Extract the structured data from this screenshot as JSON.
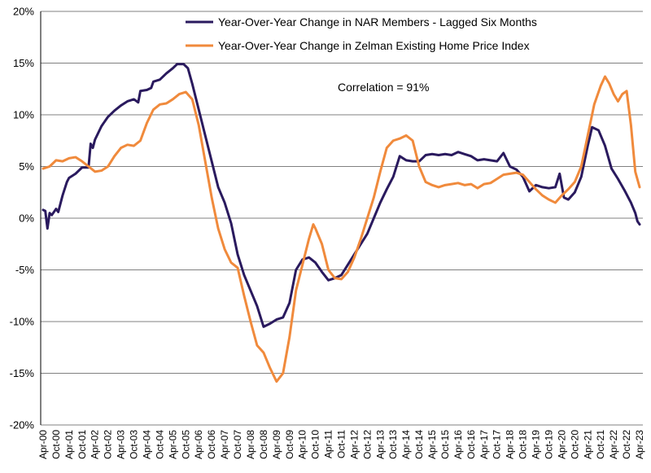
{
  "chart_data": {
    "type": "line",
    "title": "",
    "xlabel": "",
    "ylabel": "",
    "ylim": [
      -20,
      20
    ],
    "y_ticks": [
      20,
      15,
      10,
      5,
      0,
      -5,
      -10,
      -15,
      -20
    ],
    "y_tick_labels": [
      "20%",
      "15%",
      "10%",
      "5%",
      "0%",
      "-5%",
      "-10%",
      "-15%",
      "-20%"
    ],
    "x_range": [
      "2000-04",
      "2023-04"
    ],
    "x_tick_labels": [
      "Apr-00",
      "Oct-00",
      "Apr-01",
      "Oct-01",
      "Apr-02",
      "Oct-02",
      "Apr-03",
      "Oct-03",
      "Apr-04",
      "Oct-04",
      "Apr-05",
      "Oct-05",
      "Apr-06",
      "Oct-06",
      "Apr-07",
      "Oct-07",
      "Apr-08",
      "Oct-08",
      "Apr-09",
      "Oct-09",
      "Apr-10",
      "Oct-10",
      "Apr-11",
      "Oct-11",
      "Apr-12",
      "Oct-12",
      "Apr-13",
      "Oct-13",
      "Apr-14",
      "Oct-14",
      "Apr-15",
      "Oct-15",
      "Apr-16",
      "Oct-16",
      "Apr-17",
      "Oct-17",
      "Apr-18",
      "Oct-18",
      "Apr-19",
      "Oct-19",
      "Apr-20",
      "Oct-20",
      "Apr-21",
      "Oct-21",
      "Apr-22",
      "Oct-22",
      "Apr-23"
    ],
    "gridlines": "horizontal",
    "legend_position": "top-right",
    "annotation": "Correlation = 91%",
    "series": [
      {
        "name": "Year-Over-Year Change in NAR Members - Lagged Six Months",
        "color": "#2a1a5e",
        "points": [
          [
            "2000-04",
            0.8
          ],
          [
            "2000-05",
            0.7
          ],
          [
            "2000-06",
            -1.0
          ],
          [
            "2000-07",
            0.5
          ],
          [
            "2000-08",
            0.3
          ],
          [
            "2000-10",
            0.9
          ],
          [
            "2000-11",
            0.6
          ],
          [
            "2001-01",
            2.2
          ],
          [
            "2001-03",
            3.5
          ],
          [
            "2001-04",
            3.9
          ],
          [
            "2001-07",
            4.3
          ],
          [
            "2001-10",
            4.9
          ],
          [
            "2002-01",
            4.9
          ],
          [
            "2002-02",
            7.2
          ],
          [
            "2002-03",
            6.8
          ],
          [
            "2002-04",
            7.6
          ],
          [
            "2002-07",
            8.9
          ],
          [
            "2002-10",
            9.8
          ],
          [
            "2003-01",
            10.4
          ],
          [
            "2003-04",
            10.9
          ],
          [
            "2003-07",
            11.3
          ],
          [
            "2003-10",
            11.5
          ],
          [
            "2003-12",
            11.2
          ],
          [
            "2004-01",
            12.3
          ],
          [
            "2004-04",
            12.4
          ],
          [
            "2004-06",
            12.6
          ],
          [
            "2004-07",
            13.2
          ],
          [
            "2004-10",
            13.4
          ],
          [
            "2005-01",
            14.0
          ],
          [
            "2005-04",
            14.5
          ],
          [
            "2005-06",
            14.9
          ],
          [
            "2005-09",
            14.9
          ],
          [
            "2005-11",
            14.5
          ],
          [
            "2006-01",
            13.0
          ],
          [
            "2006-04",
            10.5
          ],
          [
            "2006-07",
            8.0
          ],
          [
            "2006-10",
            5.5
          ],
          [
            "2007-01",
            3.0
          ],
          [
            "2007-04",
            1.5
          ],
          [
            "2007-07",
            -0.5
          ],
          [
            "2007-10",
            -3.5
          ],
          [
            "2008-01",
            -5.5
          ],
          [
            "2008-04",
            -7.0
          ],
          [
            "2008-07",
            -8.5
          ],
          [
            "2008-10",
            -10.5
          ],
          [
            "2009-01",
            -10.2
          ],
          [
            "2009-04",
            -9.8
          ],
          [
            "2009-07",
            -9.6
          ],
          [
            "2009-10",
            -8.2
          ],
          [
            "2010-01",
            -5.0
          ],
          [
            "2010-04",
            -4.0
          ],
          [
            "2010-07",
            -3.8
          ],
          [
            "2010-10",
            -4.3
          ],
          [
            "2011-01",
            -5.2
          ],
          [
            "2011-04",
            -6.0
          ],
          [
            "2011-07",
            -5.8
          ],
          [
            "2011-10",
            -5.5
          ],
          [
            "2012-01",
            -4.5
          ],
          [
            "2012-04",
            -3.5
          ],
          [
            "2012-07",
            -2.5
          ],
          [
            "2012-10",
            -1.5
          ],
          [
            "2013-01",
            0.0
          ],
          [
            "2013-04",
            1.5
          ],
          [
            "2013-07",
            2.8
          ],
          [
            "2013-10",
            4.0
          ],
          [
            "2014-01",
            6.0
          ],
          [
            "2014-04",
            5.6
          ],
          [
            "2014-07",
            5.5
          ],
          [
            "2014-10",
            5.5
          ],
          [
            "2015-01",
            6.1
          ],
          [
            "2015-04",
            6.2
          ],
          [
            "2015-07",
            6.1
          ],
          [
            "2015-10",
            6.2
          ],
          [
            "2016-01",
            6.1
          ],
          [
            "2016-04",
            6.4
          ],
          [
            "2016-07",
            6.2
          ],
          [
            "2016-10",
            6.0
          ],
          [
            "2017-01",
            5.6
          ],
          [
            "2017-04",
            5.7
          ],
          [
            "2017-07",
            5.6
          ],
          [
            "2017-10",
            5.5
          ],
          [
            "2018-01",
            6.3
          ],
          [
            "2018-04",
            5.0
          ],
          [
            "2018-07",
            4.7
          ],
          [
            "2018-10",
            4.0
          ],
          [
            "2019-01",
            2.6
          ],
          [
            "2019-04",
            3.2
          ],
          [
            "2019-07",
            3.0
          ],
          [
            "2019-10",
            2.9
          ],
          [
            "2020-01",
            3.0
          ],
          [
            "2020-03",
            4.3
          ],
          [
            "2020-05",
            2.0
          ],
          [
            "2020-07",
            1.8
          ],
          [
            "2020-10",
            2.5
          ],
          [
            "2021-01",
            4.0
          ],
          [
            "2021-04",
            7.0
          ],
          [
            "2021-06",
            8.8
          ],
          [
            "2021-09",
            8.5
          ],
          [
            "2021-12",
            7.0
          ],
          [
            "2022-03",
            4.8
          ],
          [
            "2022-06",
            3.8
          ],
          [
            "2022-09",
            2.7
          ],
          [
            "2022-12",
            1.5
          ],
          [
            "2023-02",
            0.5
          ],
          [
            "2023-03",
            -0.3
          ],
          [
            "2023-04",
            -0.6
          ]
        ]
      },
      {
        "name": "Year-Over-Year Change in Zelman Existing Home Price Index",
        "color": "#f08a3c",
        "points": [
          [
            "2000-04",
            4.8
          ],
          [
            "2000-07",
            5.0
          ],
          [
            "2000-10",
            5.6
          ],
          [
            "2001-01",
            5.5
          ],
          [
            "2001-04",
            5.8
          ],
          [
            "2001-07",
            5.9
          ],
          [
            "2001-10",
            5.5
          ],
          [
            "2002-01",
            5.0
          ],
          [
            "2002-04",
            4.5
          ],
          [
            "2002-07",
            4.6
          ],
          [
            "2002-10",
            5.0
          ],
          [
            "2003-01",
            6.0
          ],
          [
            "2003-04",
            6.8
          ],
          [
            "2003-07",
            7.1
          ],
          [
            "2003-10",
            7.0
          ],
          [
            "2004-01",
            7.5
          ],
          [
            "2004-04",
            9.2
          ],
          [
            "2004-07",
            10.5
          ],
          [
            "2004-10",
            11.0
          ],
          [
            "2005-01",
            11.1
          ],
          [
            "2005-04",
            11.5
          ],
          [
            "2005-07",
            12.0
          ],
          [
            "2005-10",
            12.2
          ],
          [
            "2006-01",
            11.5
          ],
          [
            "2006-04",
            9.0
          ],
          [
            "2006-07",
            5.5
          ],
          [
            "2006-10",
            2.0
          ],
          [
            "2007-01",
            -1.0
          ],
          [
            "2007-04",
            -3.0
          ],
          [
            "2007-07",
            -4.3
          ],
          [
            "2007-10",
            -4.8
          ],
          [
            "2008-01",
            -7.5
          ],
          [
            "2008-04",
            -10.0
          ],
          [
            "2008-07",
            -12.3
          ],
          [
            "2008-10",
            -13.0
          ],
          [
            "2009-01",
            -14.5
          ],
          [
            "2009-04",
            -15.8
          ],
          [
            "2009-07",
            -15.0
          ],
          [
            "2009-10",
            -11.5
          ],
          [
            "2010-01",
            -7.0
          ],
          [
            "2010-04",
            -4.5
          ],
          [
            "2010-07",
            -2.0
          ],
          [
            "2010-09",
            -0.6
          ],
          [
            "2010-10",
            -1.0
          ],
          [
            "2011-01",
            -2.5
          ],
          [
            "2011-04",
            -5.0
          ],
          [
            "2011-07",
            -5.8
          ],
          [
            "2011-10",
            -5.9
          ],
          [
            "2012-01",
            -5.2
          ],
          [
            "2012-04",
            -3.8
          ],
          [
            "2012-07",
            -2.0
          ],
          [
            "2012-10",
            0.0
          ],
          [
            "2013-01",
            2.0
          ],
          [
            "2013-04",
            4.5
          ],
          [
            "2013-07",
            6.8
          ],
          [
            "2013-10",
            7.5
          ],
          [
            "2014-01",
            7.7
          ],
          [
            "2014-04",
            8.0
          ],
          [
            "2014-07",
            7.5
          ],
          [
            "2014-10",
            5.0
          ],
          [
            "2015-01",
            3.5
          ],
          [
            "2015-04",
            3.2
          ],
          [
            "2015-07",
            3.0
          ],
          [
            "2015-10",
            3.2
          ],
          [
            "2016-01",
            3.3
          ],
          [
            "2016-04",
            3.4
          ],
          [
            "2016-07",
            3.2
          ],
          [
            "2016-10",
            3.3
          ],
          [
            "2017-01",
            2.9
          ],
          [
            "2017-04",
            3.3
          ],
          [
            "2017-07",
            3.4
          ],
          [
            "2017-10",
            3.8
          ],
          [
            "2018-01",
            4.2
          ],
          [
            "2018-04",
            4.3
          ],
          [
            "2018-07",
            4.4
          ],
          [
            "2018-10",
            4.2
          ],
          [
            "2019-01",
            3.5
          ],
          [
            "2019-04",
            2.8
          ],
          [
            "2019-07",
            2.2
          ],
          [
            "2019-10",
            1.8
          ],
          [
            "2020-01",
            1.5
          ],
          [
            "2020-04",
            2.2
          ],
          [
            "2020-07",
            2.8
          ],
          [
            "2020-10",
            3.5
          ],
          [
            "2021-01",
            5.0
          ],
          [
            "2021-04",
            8.0
          ],
          [
            "2021-07",
            11.0
          ],
          [
            "2021-10",
            12.8
          ],
          [
            "2021-12",
            13.7
          ],
          [
            "2022-02",
            13.0
          ],
          [
            "2022-04",
            12.0
          ],
          [
            "2022-06",
            11.3
          ],
          [
            "2022-08",
            12.0
          ],
          [
            "2022-10",
            12.3
          ],
          [
            "2022-12",
            9.0
          ],
          [
            "2023-02",
            4.5
          ],
          [
            "2023-04",
            3.0
          ]
        ]
      }
    ]
  }
}
